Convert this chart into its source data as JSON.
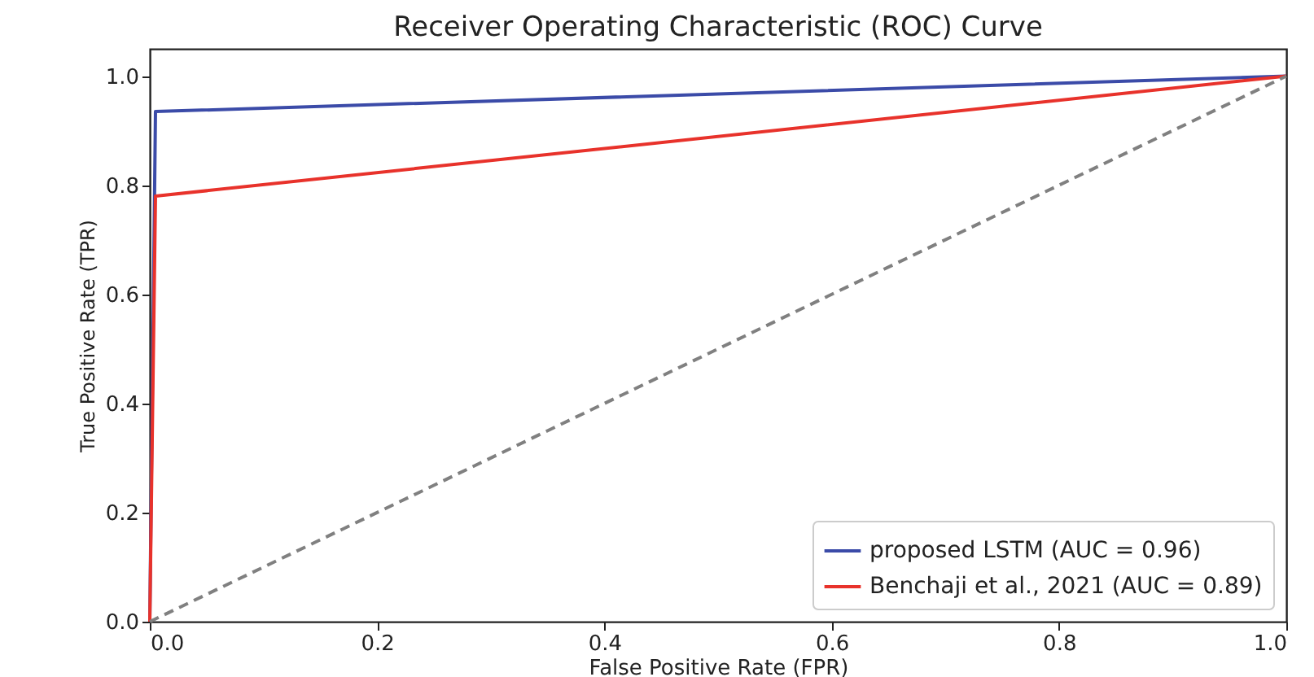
{
  "chart_data": {
    "type": "line",
    "title": "Receiver Operating Characteristic (ROC) Curve",
    "xlabel": "False Positive Rate (FPR)",
    "ylabel": "True Positive Rate (TPR)",
    "series": [
      {
        "name": "proposed LSTM (AUC = 0.96)",
        "color": "#3b4ba8",
        "x": [
          0,
          0.005,
          1
        ],
        "values": [
          0,
          0.935,
          1
        ]
      },
      {
        "name": "Benchaji et al., 2021 (AUC = 0.89)",
        "color": "#e8322b",
        "x": [
          0,
          0.005,
          1
        ],
        "values": [
          0,
          0.78,
          1
        ]
      },
      {
        "color": "#808080",
        "x": [
          0,
          1
        ],
        "values": [
          0,
          1
        ],
        "line_style": "dashed"
      }
    ],
    "xlim": [
      0,
      1
    ],
    "ylim": [
      0,
      1.05
    ],
    "xticks": [
      {
        "value": 0,
        "label": "0.0"
      },
      0.2,
      0.4,
      0.6,
      0.8,
      {
        "value": 1,
        "label": "1.0"
      }
    ],
    "yticks": [
      {
        "value": 0,
        "label": "0.0"
      },
      0.2,
      0.4,
      0.6,
      0.8,
      {
        "value": 1,
        "label": "1.0"
      }
    ],
    "grid": false,
    "legend": "bottom right",
    "marker": "none"
  }
}
